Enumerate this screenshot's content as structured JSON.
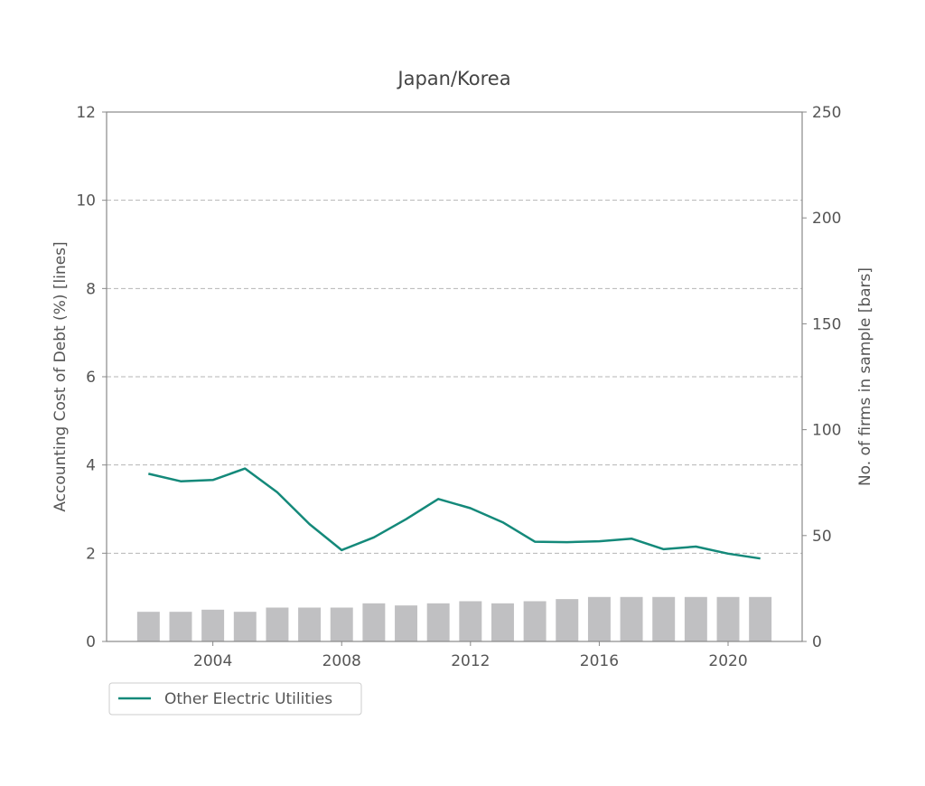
{
  "chart_data": {
    "type": "line",
    "title": "Japan/Korea",
    "x": [
      2002,
      2003,
      2004,
      2005,
      2006,
      2007,
      2008,
      2009,
      2010,
      2011,
      2012,
      2013,
      2014,
      2015,
      2016,
      2017,
      2018,
      2019,
      2020,
      2021
    ],
    "series": [
      {
        "name": "Other Electric Utilities",
        "type": "line",
        "axis": "left",
        "color": "#14897a",
        "values": [
          3.8,
          3.63,
          3.66,
          3.92,
          3.38,
          2.66,
          2.07,
          2.36,
          2.77,
          3.23,
          3.02,
          2.7,
          2.26,
          2.25,
          2.27,
          2.33,
          2.09,
          2.15,
          1.99,
          1.88
        ]
      },
      {
        "type": "bar",
        "axis": "right",
        "color": "#c0c0c2",
        "values": [
          14,
          14,
          15,
          14,
          16,
          16,
          16,
          18,
          17,
          18,
          19,
          18,
          19,
          20,
          21,
          21,
          21,
          21,
          21,
          21
        ]
      }
    ],
    "xlim": [
      2000.7,
      2022.3
    ],
    "xticks": [
      "2004",
      "2008",
      "2012",
      "2016",
      "2020"
    ],
    "ylabel": "Accounting Cost of Debt (%) [lines]",
    "ylim": [
      0,
      12
    ],
    "yticks": [
      "0",
      "2",
      "4",
      "6",
      "8",
      "10",
      "12"
    ],
    "y2label": "No. of firms in sample  [bars]",
    "y2lim": [
      0,
      250
    ],
    "y2ticks": [
      "0",
      "50",
      "100",
      "150",
      "200",
      "250"
    ],
    "grid": "horizontal dashed",
    "legend_position": "below-left"
  }
}
